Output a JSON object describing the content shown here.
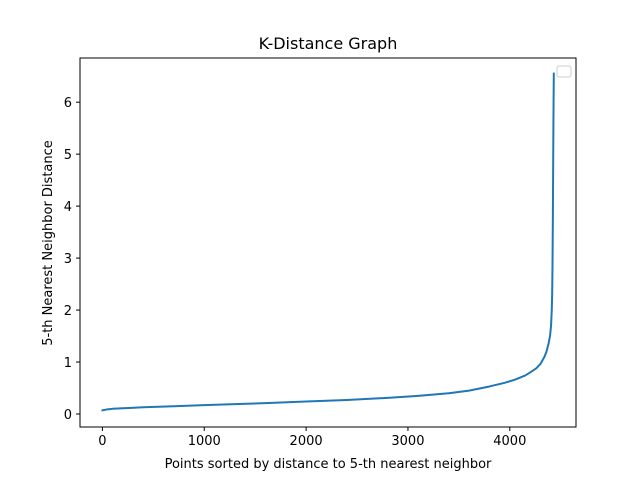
{
  "chart_data": {
    "type": "line",
    "title": "K-Distance Graph",
    "xlabel": "Points sorted by distance to 5-th nearest neighbor",
    "ylabel": "5-th Nearest Neighbor Distance",
    "xlim": [
      -220,
      4650
    ],
    "ylim": [
      -0.25,
      6.85
    ],
    "xticks": [
      0,
      1000,
      2000,
      3000,
      4000
    ],
    "yticks": [
      0,
      1,
      2,
      3,
      4,
      5,
      6
    ],
    "grid": false,
    "legend": "upper right, empty",
    "series": [
      {
        "color": "#1f77b4",
        "x": [
          0,
          50,
          100,
          200,
          400,
          700,
          1000,
          1300,
          1600,
          2000,
          2400,
          2800,
          3100,
          3400,
          3600,
          3800,
          3950,
          4050,
          4150,
          4200,
          4260,
          4300,
          4340,
          4360,
          4380,
          4395,
          4405,
          4412,
          4416,
          4420,
          4423,
          4425,
          4427,
          4429,
          4431,
          4432
        ],
        "y": [
          0.07,
          0.09,
          0.1,
          0.11,
          0.13,
          0.15,
          0.17,
          0.19,
          0.21,
          0.24,
          0.27,
          0.31,
          0.35,
          0.4,
          0.45,
          0.53,
          0.6,
          0.66,
          0.74,
          0.8,
          0.88,
          0.96,
          1.1,
          1.2,
          1.35,
          1.5,
          1.7,
          2.0,
          2.3,
          3.0,
          3.8,
          4.5,
          5.2,
          5.8,
          6.3,
          6.55
        ]
      }
    ]
  }
}
